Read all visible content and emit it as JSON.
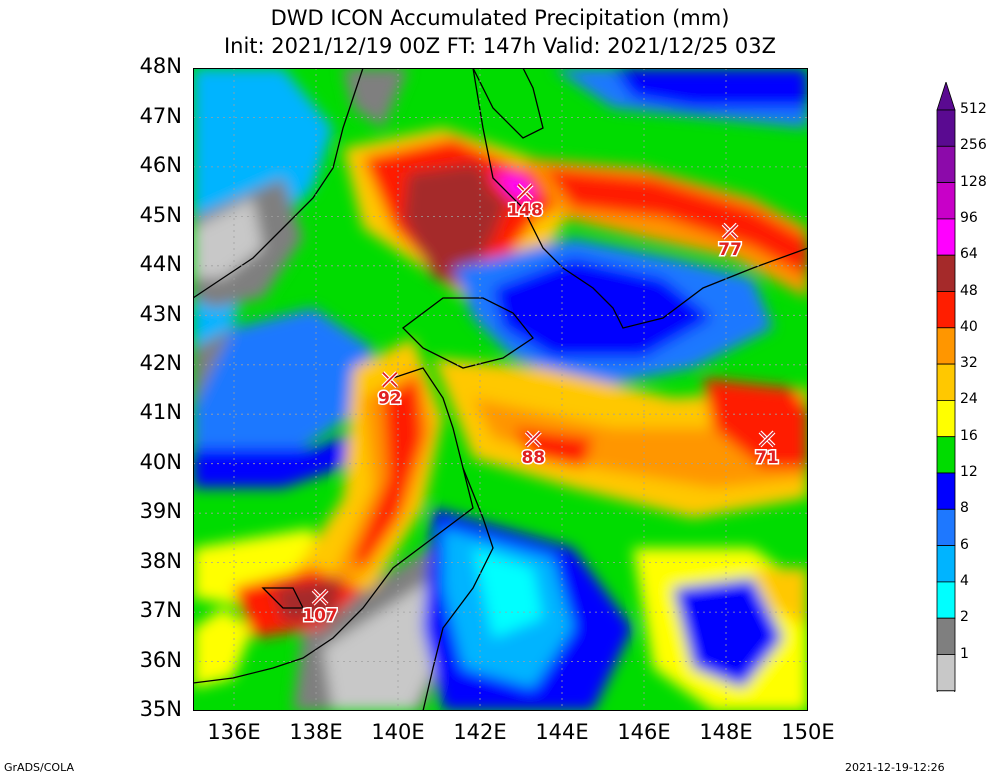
{
  "title": {
    "line1": "DWD ICON Accumulated Precipitation (mm)",
    "line2": "Init: 2021/12/19 00Z  FT: 147h  Valid: 2021/12/25 03Z"
  },
  "map": {
    "lat_labels": [
      "48N",
      "47N",
      "46N",
      "45N",
      "44N",
      "43N",
      "42N",
      "41N",
      "40N",
      "39N",
      "38N",
      "37N",
      "36N",
      "35N"
    ],
    "lon_labels": [
      "136E",
      "138E",
      "140E",
      "142E",
      "144E",
      "146E",
      "148E",
      "150E"
    ],
    "extent": {
      "lon_min": 135,
      "lon_max": 150,
      "lat_min": 35,
      "lat_max": 48
    },
    "maxima": [
      {
        "value": "148",
        "lon": 143.1,
        "lat": 45.5
      },
      {
        "value": "77",
        "lon": 148.1,
        "lat": 44.7
      },
      {
        "value": "92",
        "lon": 139.8,
        "lat": 41.7
      },
      {
        "value": "88",
        "lon": 143.3,
        "lat": 40.5
      },
      {
        "value": "71",
        "lon": 149.0,
        "lat": 40.5
      },
      {
        "value": "107",
        "lon": 138.1,
        "lat": 37.3
      }
    ]
  },
  "legend": {
    "levels": [
      {
        "label": "512",
        "color": "#5a0a91"
      },
      {
        "label": "256",
        "color": "#8c0aaa"
      },
      {
        "label": "128",
        "color": "#c800c8"
      },
      {
        "label": "96",
        "color": "#ff00ff"
      },
      {
        "label": "64",
        "color": "#a52a2a"
      },
      {
        "label": "48",
        "color": "#ff1e00"
      },
      {
        "label": "40",
        "color": "#ff9600"
      },
      {
        "label": "32",
        "color": "#ffc800"
      },
      {
        "label": "24",
        "color": "#ffff00"
      },
      {
        "label": "16",
        "color": "#00dc00"
      },
      {
        "label": "12",
        "color": "#0000ff"
      },
      {
        "label": "8",
        "color": "#1e78ff"
      },
      {
        "label": "6",
        "color": "#00b4ff"
      },
      {
        "label": "4",
        "color": "#00ffff"
      },
      {
        "label": "2",
        "color": "#7f7f7f"
      },
      {
        "label": "1",
        "color": "#c8c8c8"
      }
    ],
    "bottom_color": "#ffffff"
  },
  "footer": {
    "left": "GrADS/COLA",
    "right": "2021-12-19-12:26"
  }
}
